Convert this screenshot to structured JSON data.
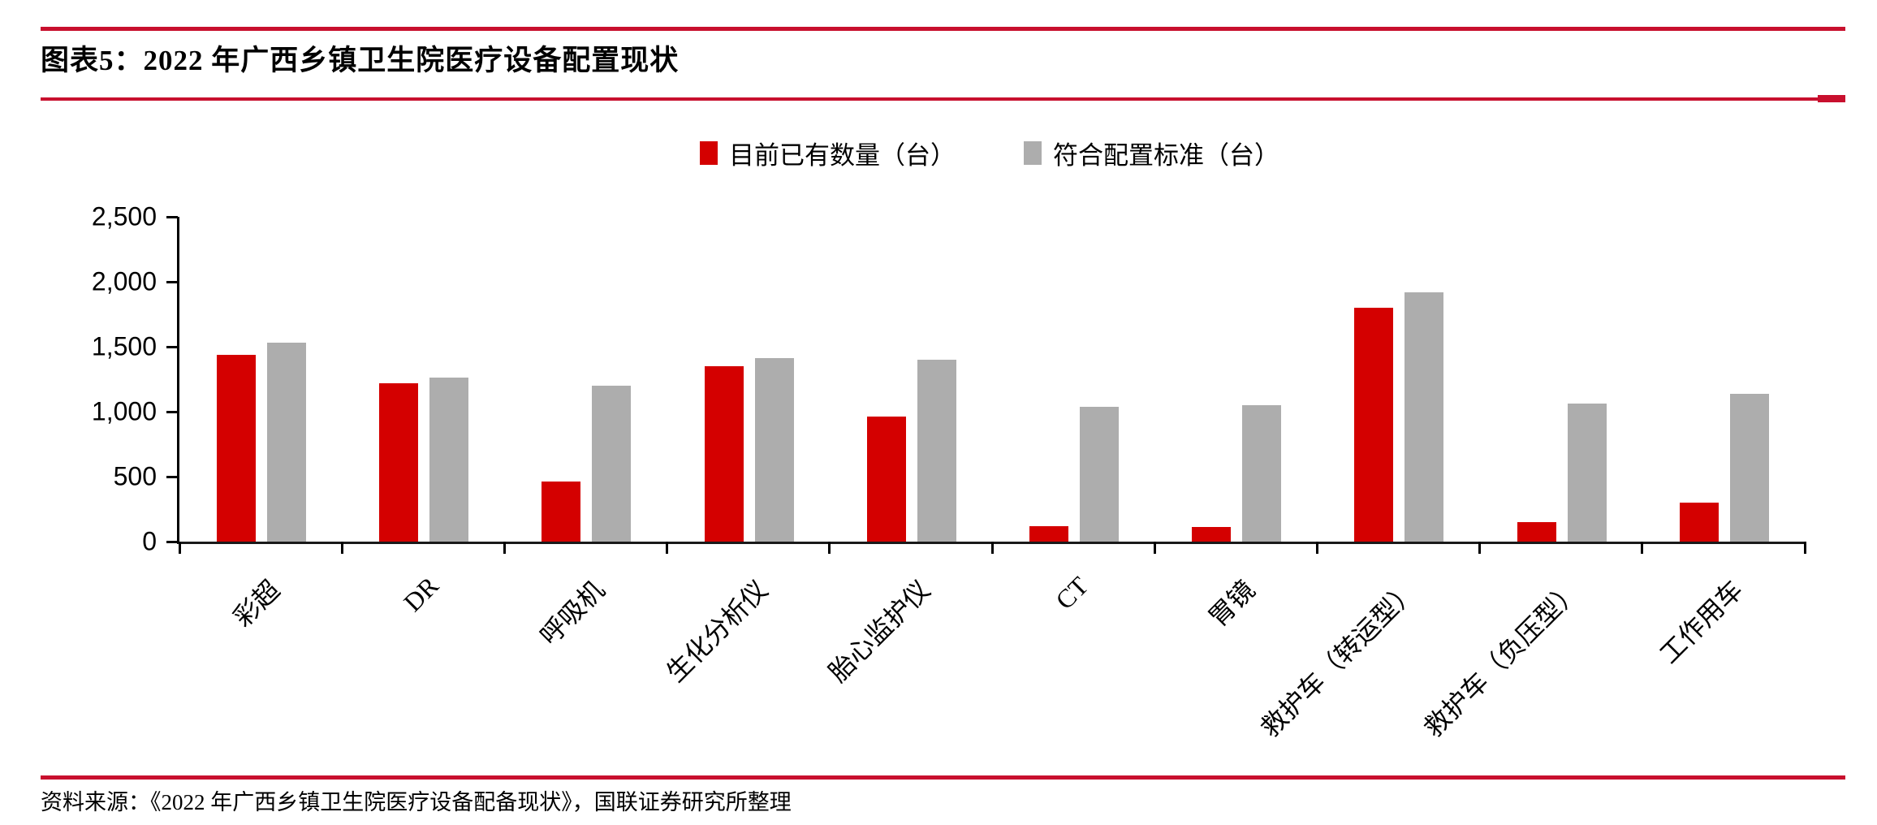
{
  "figure": {
    "title": "图表5：2022 年广西乡镇卫生院医疗设备配置现状",
    "source": "资料来源：《2022 年广西乡镇卫生院医疗设备配备现状》，国联证券研究所整理"
  },
  "colors": {
    "accent_rule": "#C8102E",
    "series_current": "#D40000",
    "series_standard": "#ADADAD",
    "axis": "#000000"
  },
  "chart_data": {
    "type": "bar",
    "title": "2022 年广西乡镇卫生院医疗设备配置现状",
    "categories": [
      "彩超",
      "DR",
      "呼吸机",
      "生化分析仪",
      "胎心监护仪",
      "CT",
      "胃镜",
      "救护车（转运型）",
      "救护车（负压型）",
      "工作用车"
    ],
    "series": [
      {
        "name": "目前已有数量（台）",
        "color": "#D40000",
        "values": [
          1440,
          1220,
          460,
          1350,
          960,
          120,
          110,
          1800,
          150,
          300
        ]
      },
      {
        "name": "符合配置标准（台）",
        "color": "#ADADAD",
        "values": [
          1530,
          1260,
          1200,
          1410,
          1400,
          1040,
          1050,
          1920,
          1060,
          1140
        ]
      }
    ],
    "xlabel": "",
    "ylabel": "",
    "ylim": [
      0,
      2500
    ],
    "ytick_step": 500,
    "ytick_labels": [
      "0",
      "500",
      "1,000",
      "1,500",
      "2,000",
      "2,500"
    ],
    "grid": false,
    "legend_position": "top-center",
    "xlabel_rotation_deg": 45
  }
}
